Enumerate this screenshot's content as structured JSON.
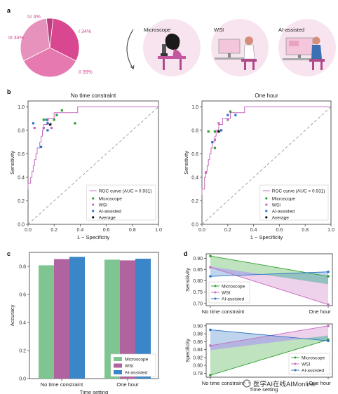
{
  "panel_labels": {
    "a": "a",
    "b": "b",
    "c": "c",
    "d": "d"
  },
  "watermark": "医学AI在线AIMonline",
  "colors": {
    "microscope": "#2ca02c",
    "wsi": "#c76bc1",
    "ai": "#2b73c4",
    "average": "#111111",
    "roc": "#c76bc1",
    "bar_microscope": "#7fc591",
    "bar_wsi": "#b0639e",
    "bar_ai": "#3a86c8"
  },
  "panel_a": {
    "pie_labels": [
      "I 34%",
      "II 39%",
      "III 34%",
      "IV 4%"
    ],
    "settings": [
      "Microscope",
      "WSI",
      "AI-assisted"
    ]
  },
  "chart_data": [
    {
      "type": "pie",
      "labels": [
        "I 34%",
        "II 39%",
        "III 34%",
        "IV 4%"
      ],
      "values": [
        34,
        39,
        34,
        4
      ]
    },
    {
      "type": "scatter",
      "title": "No time constraint",
      "xlabel": "1 − Specificity",
      "ylabel": "Sensitivity",
      "xlim": [
        0,
        1
      ],
      "ylim": [
        0,
        1.05
      ],
      "ticks": [
        "0.0",
        "0.2",
        "0.4",
        "0.6",
        "0.8",
        "1.0"
      ],
      "roc_legend": "ROC curve (AUC = 0.931)",
      "legend": [
        "Microscope",
        "WSI",
        "AI-assisted",
        "Average"
      ],
      "roc": [
        [
          0,
          0.3
        ],
        [
          0,
          0.35
        ],
        [
          0.02,
          0.35
        ],
        [
          0.02,
          0.4
        ],
        [
          0.03,
          0.4
        ],
        [
          0.03,
          0.45
        ],
        [
          0.04,
          0.45
        ],
        [
          0.04,
          0.5
        ],
        [
          0.05,
          0.5
        ],
        [
          0.05,
          0.55
        ],
        [
          0.06,
          0.55
        ],
        [
          0.06,
          0.6
        ],
        [
          0.07,
          0.6
        ],
        [
          0.07,
          0.65
        ],
        [
          0.09,
          0.65
        ],
        [
          0.09,
          0.7
        ],
        [
          0.1,
          0.7
        ],
        [
          0.1,
          0.75
        ],
        [
          0.11,
          0.75
        ],
        [
          0.11,
          0.8
        ],
        [
          0.12,
          0.8
        ],
        [
          0.12,
          0.85
        ],
        [
          0.15,
          0.85
        ],
        [
          0.15,
          0.9
        ],
        [
          0.2,
          0.9
        ],
        [
          0.2,
          0.95
        ],
        [
          0.38,
          0.95
        ],
        [
          0.38,
          1.0
        ],
        [
          1,
          1.0
        ]
      ],
      "series": [
        {
          "name": "Microscope",
          "points": [
            [
              0.12,
              0.89
            ],
            [
              0.2,
              0.89
            ],
            [
              0.22,
              0.93
            ],
            [
              0.26,
              0.97
            ],
            [
              0.36,
              0.86
            ]
          ]
        },
        {
          "name": "WSI",
          "points": [
            [
              0.05,
              0.82
            ],
            [
              0.12,
              0.82
            ],
            [
              0.18,
              0.82
            ],
            [
              0.15,
              0.89
            ]
          ]
        },
        {
          "name": "AI-assisted",
          "points": [
            [
              0.04,
              0.86
            ],
            [
              0.1,
              0.66
            ],
            [
              0.15,
              0.8
            ],
            [
              0.15,
              0.86
            ],
            [
              0.14,
              0.89
            ]
          ]
        },
        {
          "name": "Average",
          "points": [
            [
              0.17,
              0.85
            ]
          ]
        }
      ]
    },
    {
      "type": "scatter",
      "title": "One hour",
      "xlabel": "1 − Specificity",
      "ylabel": "Sensitivity",
      "xlim": [
        0,
        1
      ],
      "ylim": [
        0,
        1.05
      ],
      "ticks": [
        "0.0",
        "0.2",
        "0.4",
        "0.6",
        "0.8",
        "1.0"
      ],
      "roc_legend": "ROC curve (AUC = 0.931)",
      "legend": [
        "Microscope",
        "WSI",
        "AI-assisted",
        "Average"
      ],
      "roc": [
        [
          0,
          0.25
        ],
        [
          0,
          0.3
        ],
        [
          0.02,
          0.3
        ],
        [
          0.02,
          0.4
        ],
        [
          0.03,
          0.4
        ],
        [
          0.03,
          0.45
        ],
        [
          0.04,
          0.45
        ],
        [
          0.04,
          0.5
        ],
        [
          0.05,
          0.5
        ],
        [
          0.05,
          0.55
        ],
        [
          0.06,
          0.55
        ],
        [
          0.06,
          0.6
        ],
        [
          0.07,
          0.6
        ],
        [
          0.07,
          0.65
        ],
        [
          0.08,
          0.65
        ],
        [
          0.08,
          0.7
        ],
        [
          0.1,
          0.7
        ],
        [
          0.1,
          0.75
        ],
        [
          0.11,
          0.75
        ],
        [
          0.11,
          0.8
        ],
        [
          0.13,
          0.8
        ],
        [
          0.13,
          0.85
        ],
        [
          0.16,
          0.85
        ],
        [
          0.16,
          0.9
        ],
        [
          0.22,
          0.9
        ],
        [
          0.22,
          0.95
        ],
        [
          0.33,
          0.95
        ],
        [
          0.33,
          1.0
        ],
        [
          1,
          1.0
        ]
      ],
      "series": [
        {
          "name": "Microscope",
          "points": [
            [
              0.05,
              0.79
            ],
            [
              0.1,
              0.79
            ],
            [
              0.13,
              0.79
            ],
            [
              0.2,
              0.89
            ],
            [
              0.22,
              0.96
            ],
            [
              0.1,
              0.65
            ]
          ]
        },
        {
          "name": "WSI",
          "points": [
            [
              0.03,
              0.44
            ],
            [
              0.1,
              0.72
            ],
            [
              0.13,
              0.86
            ],
            [
              0.2,
              0.89
            ]
          ]
        },
        {
          "name": "AI-assisted",
          "points": [
            [
              0.08,
              0.7
            ],
            [
              0.15,
              0.8
            ],
            [
              0.2,
              0.93
            ],
            [
              0.26,
              0.93
            ]
          ]
        },
        {
          "name": "Average",
          "points": [
            [
              0.13,
              0.79
            ]
          ]
        }
      ]
    },
    {
      "type": "bar",
      "categories": [
        "No time constraint",
        "One hour"
      ],
      "series": [
        {
          "name": "Microscope",
          "values": [
            0.808,
            0.848
          ]
        },
        {
          "name": "WSI",
          "values": [
            0.852,
            0.843
          ]
        },
        {
          "name": "AI-assisted",
          "values": [
            0.868,
            0.855
          ]
        }
      ],
      "xlabel": "Time setting",
      "ylabel": "Accuracy",
      "ylim": [
        0,
        0.9
      ],
      "yticks": [
        "0.0",
        "0.2",
        "0.4",
        "0.6",
        "0.8"
      ],
      "legend_position": "bottom-right"
    },
    {
      "type": "line",
      "categories": [
        "No time constraint",
        "One hour"
      ],
      "ylabel": "Sensitivity",
      "ylim": [
        0.69,
        0.92
      ],
      "yticks": [
        "0.70",
        "0.75",
        "0.80",
        "0.85",
        "0.90"
      ],
      "series": [
        {
          "name": "Microscope",
          "values": [
            0.91,
            0.82
          ]
        },
        {
          "name": "WSI",
          "values": [
            0.86,
            0.695
          ]
        },
        {
          "name": "AI-assisted",
          "values": [
            0.82,
            0.84
          ]
        }
      ],
      "legend_position": "bottom-left"
    },
    {
      "type": "line",
      "categories": [
        "No time constraint",
        "One hour"
      ],
      "xlabel": "Time setting",
      "ylabel": "Specificity",
      "ylim": [
        0.77,
        0.905
      ],
      "yticks": [
        "0.78",
        "0.80",
        "0.82",
        "0.84",
        "0.86",
        "0.88",
        "0.90"
      ],
      "series": [
        {
          "name": "Microscope",
          "values": [
            0.775,
            0.865
          ]
        },
        {
          "name": "WSI",
          "values": [
            0.85,
            0.9
          ]
        },
        {
          "name": "AI-assisted",
          "values": [
            0.89,
            0.862
          ]
        }
      ],
      "legend_position": "bottom-right"
    }
  ]
}
